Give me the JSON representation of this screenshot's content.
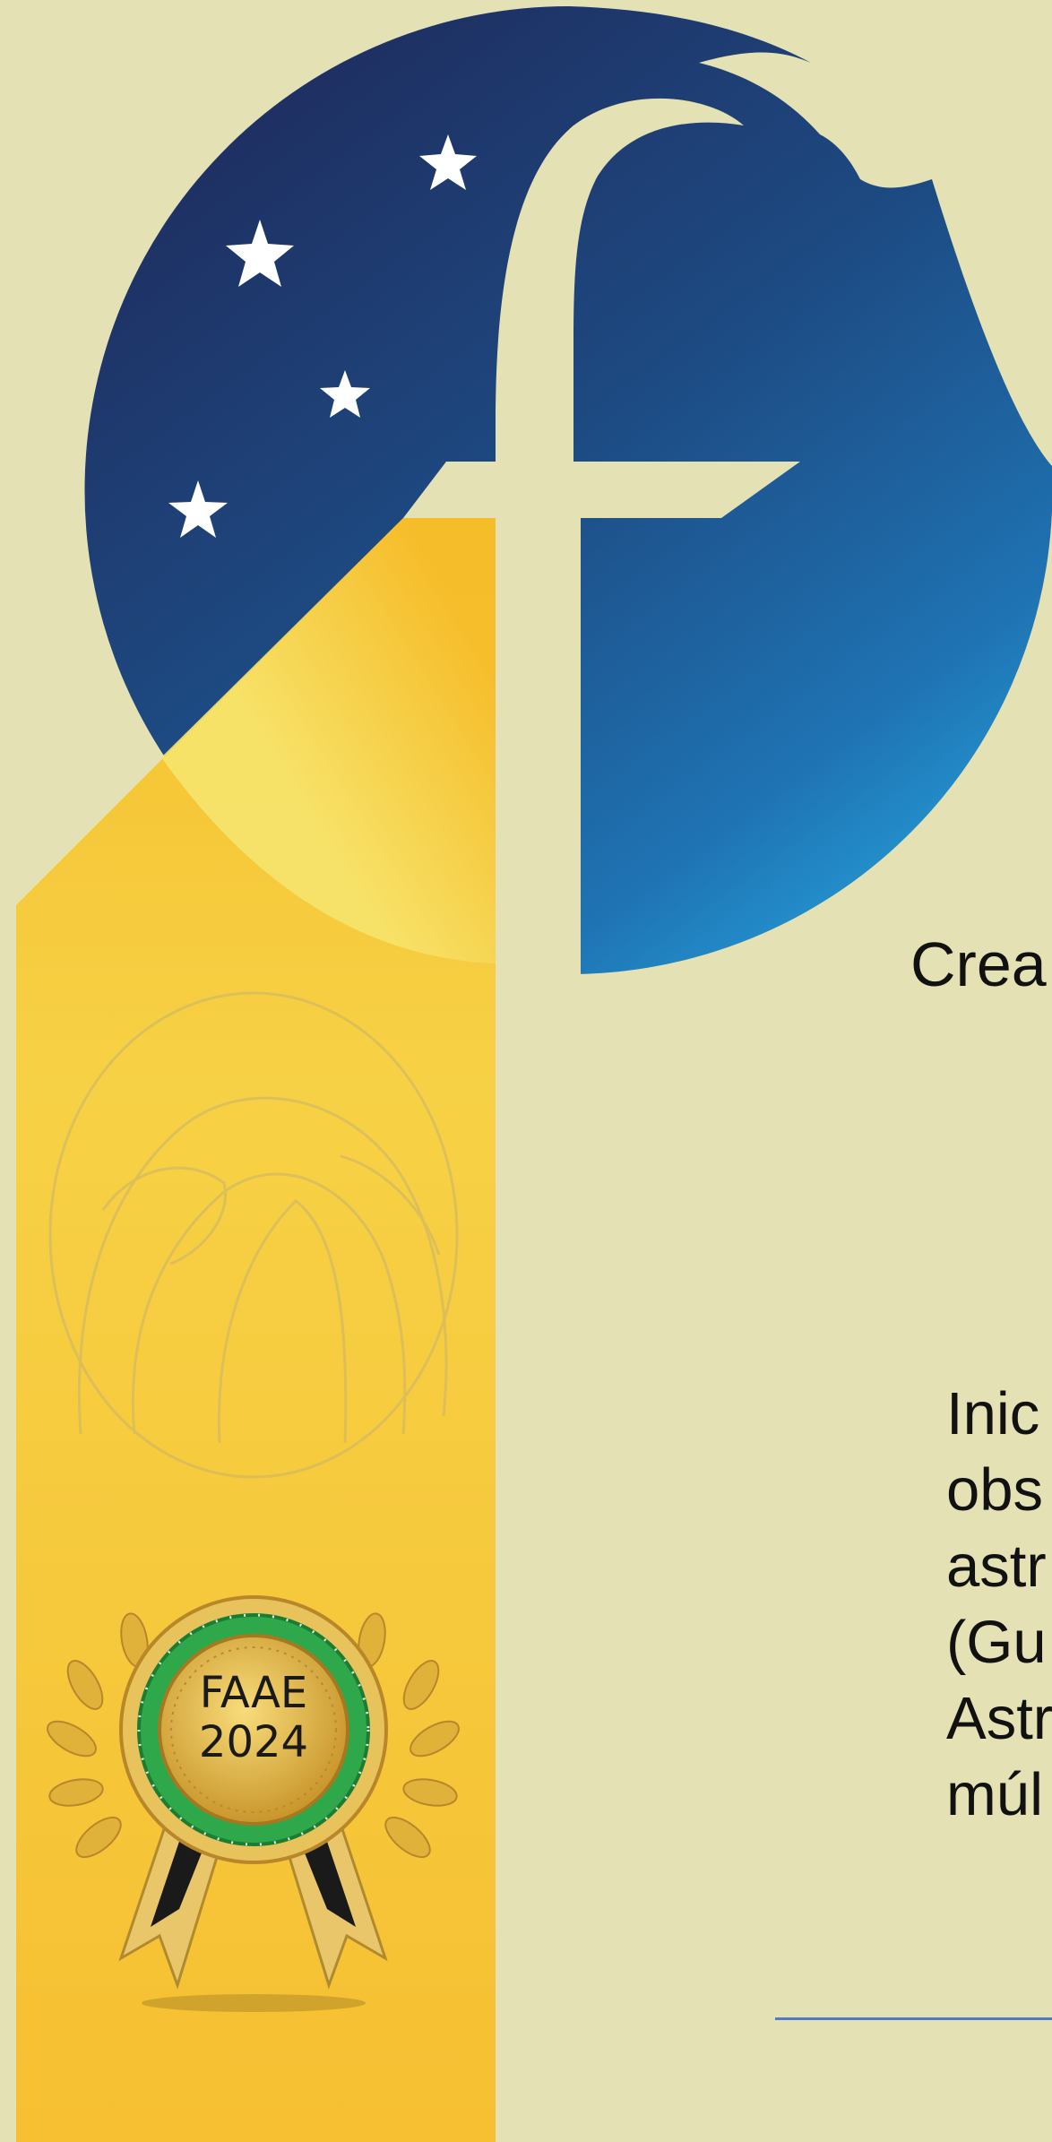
{
  "header": {
    "tagline_fragment": "Crea"
  },
  "intro": {
    "lines": [
      "Inic",
      "obs",
      "astr",
      "(Gu",
      "Astr",
      "múl"
    ]
  },
  "award_badge": {
    "label": "FAAE 2024"
  },
  "colors": {
    "background": "#e4e1b4",
    "night_sky_dark": "#1e2d60",
    "night_sky_light": "#279fdb",
    "gold_banner": "#f6c437",
    "badge_green": "#2ea84a",
    "divider_blue": "#4f7ac6"
  },
  "icons": [
    "star-icon",
    "crescent-moon-logo",
    "letter-f-logo",
    "dome-emblem-icon",
    "award-rosette-icon"
  ]
}
